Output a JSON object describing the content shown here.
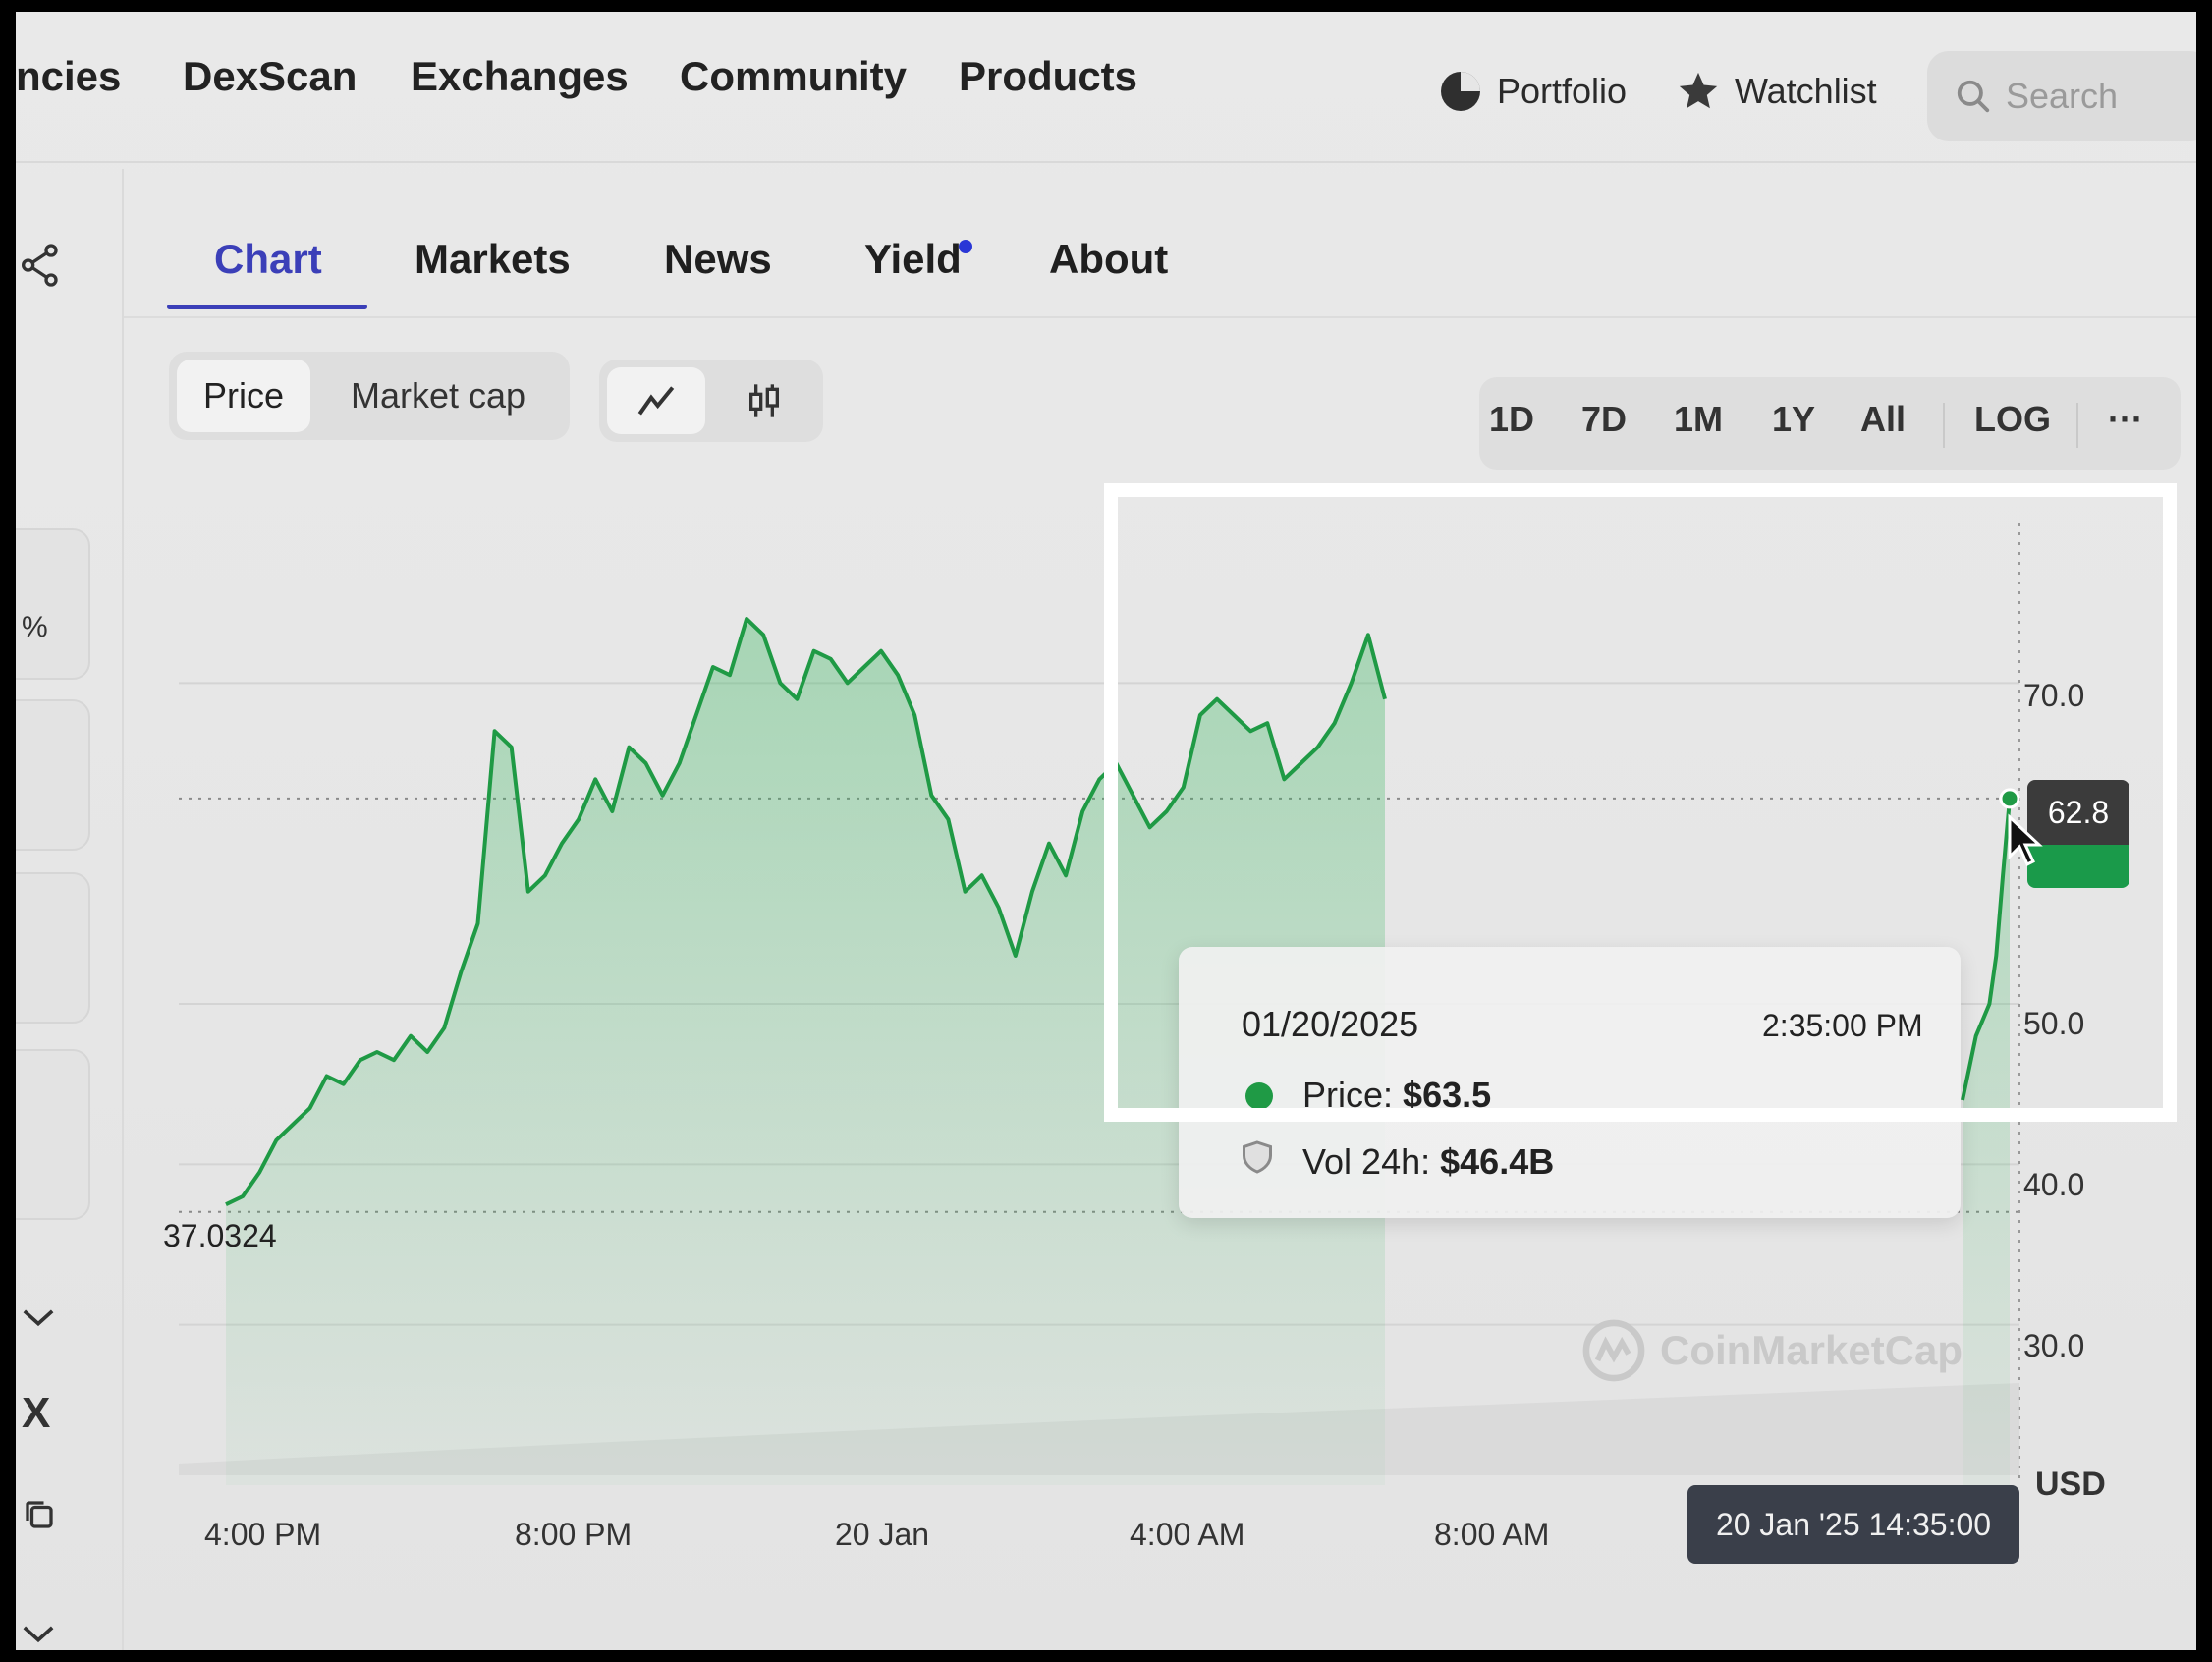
{
  "topnav": {
    "items": [
      "ncies",
      "DexScan",
      "Exchanges",
      "Community",
      "Products"
    ],
    "portfolio": "Portfolio",
    "watchlist": "Watchlist",
    "search_placeholder": "Search"
  },
  "tabs": [
    "Chart",
    "Markets",
    "News",
    "Yield",
    "About"
  ],
  "controls": {
    "price_label": "Price",
    "marketcap_label": "Market cap",
    "ranges": [
      "1D",
      "7D",
      "1M",
      "1Y",
      "All"
    ],
    "log_label": "LOG",
    "more_label": "···"
  },
  "sidebar": {
    "percent": "%",
    "x_icon": "X"
  },
  "tooltip": {
    "date": "01/20/2025",
    "time": "2:35:00 PM",
    "price_label": "Price:",
    "price_value": "$63.5",
    "vol_label": "Vol 24h:",
    "vol_value": "$46.4B"
  },
  "chart_labels": {
    "current_price": "62.8",
    "min_label": "37.0324",
    "currency": "USD",
    "crosshair_time": "20 Jan '25 14:35:00",
    "watermark": "CoinMarketCap"
  },
  "colors": {
    "line": "#1f9a45",
    "accent": "#3b3fb8"
  },
  "chart_data": {
    "type": "area",
    "y_axis_ticks": [
      "70.0",
      "50.0",
      "40.0",
      "30.0"
    ],
    "x_axis_ticks": [
      "4:00 PM",
      "8:00 PM",
      "20 Jan",
      "4:00 AM",
      "8:00 AM"
    ],
    "ylim": [
      20,
      80
    ],
    "series": [
      {
        "values": [
          37.5,
          38.0,
          39.5,
          41.5,
          42.5,
          43.5,
          45.5,
          45.0,
          46.5,
          47.0,
          46.5,
          48.0,
          47.0,
          48.5,
          52.0,
          55.0,
          67.0,
          66.0,
          57.0,
          58.0,
          60.0,
          61.5,
          64.0,
          62.0,
          66.0,
          65.0,
          63.0,
          65.0,
          68.0,
          71.0,
          70.5,
          74.0,
          73.0,
          70.0,
          69.0,
          72.0,
          71.5,
          70.0,
          71.0,
          72.0,
          70.5,
          68.0,
          63.0,
          61.5,
          57.0,
          58.0,
          56.0,
          53.0,
          57.0,
          60.0,
          58.0,
          62.0,
          64.0,
          65.0,
          63.0,
          61.0,
          62.0,
          63.5,
          68.0,
          69.0,
          68.0,
          67.0,
          67.5,
          64.0,
          65.0,
          66.0,
          67.5,
          70.0,
          73.0,
          69.0,
          44.0,
          46.0,
          48.0,
          49.0,
          50.0,
          53.0,
          58.0,
          62.8
        ],
        "note": ""
      }
    ]
  }
}
